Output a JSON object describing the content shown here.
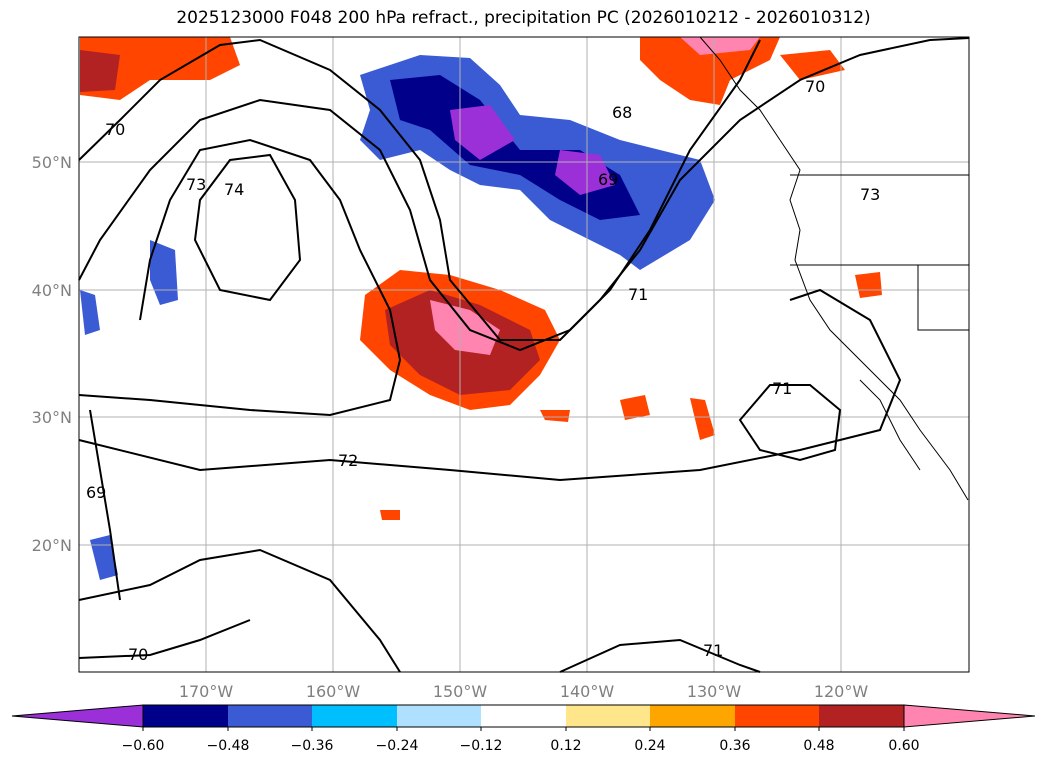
{
  "title": "2025123000 F048 200 hPa refract., precipitation PC (2026010212 - 2026010312)",
  "map": {
    "lon_labels": [
      "170°W",
      "160°W",
      "150°W",
      "140°W",
      "130°W",
      "120°W"
    ],
    "lat_labels": [
      "50°N",
      "40°N",
      "30°N",
      "20°N"
    ],
    "contour_labels": [
      "70",
      "73",
      "74",
      "68",
      "69",
      "71",
      "70",
      "73",
      "71",
      "72",
      "69",
      "70",
      "71"
    ]
  },
  "colorbar": {
    "ticks": [
      "−0.60",
      "−0.48",
      "−0.36",
      "−0.24",
      "−0.12",
      "0.12",
      "0.24",
      "0.36",
      "0.48",
      "0.60"
    ],
    "colors": [
      "#9b30d9",
      "#00008b",
      "#3a5bd4",
      "#00bfff",
      "#b0e0ff",
      "#ffffff",
      "#ffe68a",
      "#ffa500",
      "#ff4500",
      "#b22222",
      "#ff85b0"
    ]
  }
}
